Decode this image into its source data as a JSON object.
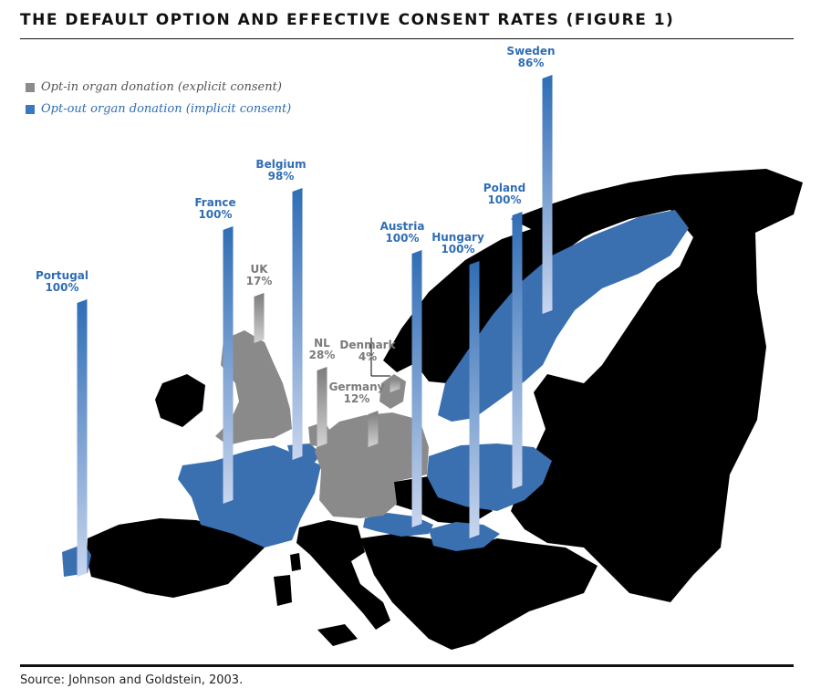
{
  "title": "THE DEFAULT OPTION AND EFFECTIVE CONSENT RATES (FIGURE 1)",
  "source": "Source: Johnson and Goldstein, 2003.",
  "colors": {
    "opt_in": "#8c8c8c",
    "opt_out": "#3a78c4",
    "other_land": "#000000",
    "text_opt_in": "#7a7a7a",
    "text_opt_out": "#2f6db5"
  },
  "legend": [
    {
      "key": "opt_in",
      "label": "Opt-in organ donation (explicit consent)"
    },
    {
      "key": "opt_out",
      "label": "Opt-out organ donation (implicit consent)"
    }
  ],
  "chart_data": {
    "type": "bar",
    "ylim": [
      0,
      100
    ],
    "series": [
      {
        "category": "Portugal",
        "value": 100,
        "label": "100%",
        "group": "opt_out"
      },
      {
        "category": "France",
        "value": 100,
        "label": "100%",
        "group": "opt_out"
      },
      {
        "category": "UK",
        "value": 17,
        "label": "17%",
        "group": "opt_in"
      },
      {
        "category": "Belgium",
        "value": 98,
        "label": "98%",
        "group": "opt_out"
      },
      {
        "category": "NL",
        "value": 28,
        "label": "28%",
        "group": "opt_in"
      },
      {
        "category": "Denmark",
        "value": 4,
        "label": "4%",
        "group": "opt_in"
      },
      {
        "category": "Germany",
        "value": 12,
        "label": "12%",
        "group": "opt_in"
      },
      {
        "category": "Austria",
        "value": 100,
        "label": "100%",
        "group": "opt_out"
      },
      {
        "category": "Hungary",
        "value": 100,
        "label": "100%",
        "group": "opt_out"
      },
      {
        "category": "Poland",
        "value": 100,
        "label": "100%",
        "group": "opt_out"
      },
      {
        "category": "Sweden",
        "value": 86,
        "label": "86%",
        "group": "opt_out"
      }
    ]
  }
}
